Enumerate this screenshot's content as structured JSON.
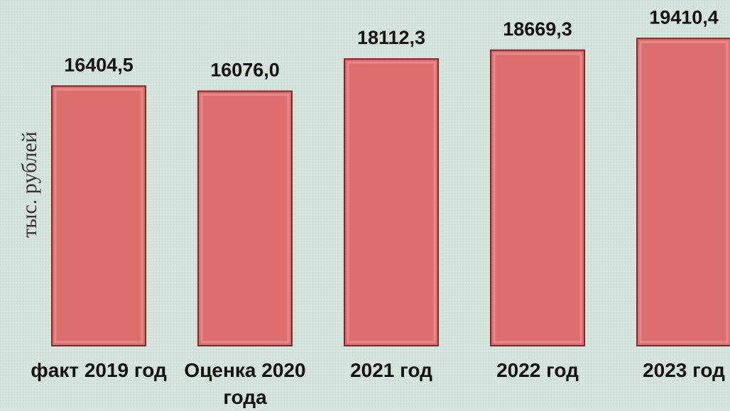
{
  "chart_data": {
    "type": "bar",
    "y_label": "тыс. рублей",
    "categories": [
      "факт 2019 год",
      "Оценка 2020 года",
      "2021 год",
      "2022 год",
      "2023 год"
    ],
    "values": [
      16404.5,
      16076.0,
      18112.3,
      18669.3,
      19410.4
    ],
    "value_labels": [
      "16404,5",
      "16076,0",
      "18112,3",
      "18669,3",
      "19410,4"
    ],
    "color": "#dc6e6e",
    "ylim": [
      0,
      20000
    ]
  }
}
